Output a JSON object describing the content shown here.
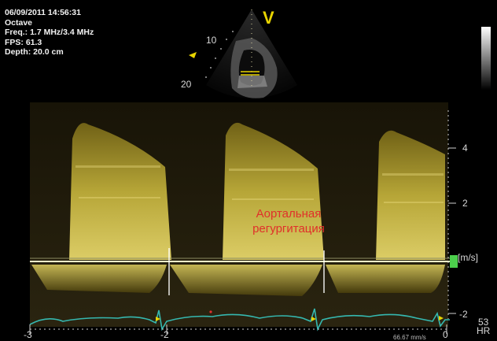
{
  "header": {
    "datetime": "06/09/2011 14:56:31",
    "mode": "Octave",
    "freq": "Freq.: 1.7 MHz/3.4 MHz",
    "fps": "FPS: 61.3",
    "depth": "Depth: 20.0 cm"
  },
  "sector": {
    "marker": "V",
    "depth_labels": [
      "10",
      "20"
    ]
  },
  "annotation": {
    "line1": "Аортальная",
    "line2": "регургитация"
  },
  "velocity_axis": {
    "unit": "[m/s]",
    "ticks": [
      "4",
      "2",
      "-2"
    ]
  },
  "time_axis": {
    "ticks": [
      "-3",
      "-2",
      "0"
    ]
  },
  "hr": {
    "value": "53",
    "label": "HR"
  },
  "sweep_speed": "66.67 mm/s",
  "colors": {
    "doppler": "#d8c84a",
    "ecg": "#35b8b0",
    "baseline": "#eef0c8",
    "marker": "#4ccf4c",
    "annotation": "#e0302a"
  }
}
